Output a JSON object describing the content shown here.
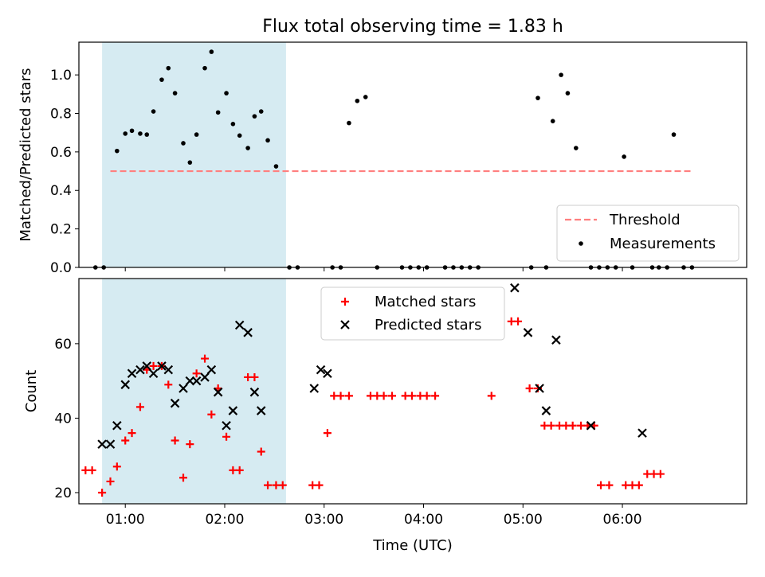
{
  "title": "Flux total observing time = 1.83 h",
  "xlabel": "Time (UTC)",
  "chart_data": [
    {
      "type": "scatter",
      "ylabel": "Matched/Predicted stars",
      "xlim": [
        "00:32",
        "07:15"
      ],
      "ylim": [
        0,
        1.17
      ],
      "yticks": [
        0.0,
        0.2,
        0.4,
        0.6,
        0.8,
        1.0
      ],
      "xticks": [
        "01:00",
        "02:00",
        "03:00",
        "04:00",
        "05:00",
        "06:00"
      ],
      "shaded_interval": [
        "00:46",
        "02:37"
      ],
      "threshold": {
        "name": "Threshold",
        "value": 0.5,
        "x_range": [
          "00:51",
          "06:42"
        ],
        "color": "#ff7f7f"
      },
      "legend": {
        "position": "lower right"
      },
      "series": [
        {
          "name": "Measurements",
          "color": "#000000",
          "points": [
            [
              "00:42",
              0.0
            ],
            [
              "00:47",
              0.0
            ],
            [
              "00:55",
              0.605
            ],
            [
              "01:00",
              0.695
            ],
            [
              "01:04",
              0.71
            ],
            [
              "01:09",
              0.695
            ],
            [
              "01:13",
              0.69
            ],
            [
              "01:17",
              0.81
            ],
            [
              "01:22",
              0.975
            ],
            [
              "01:26",
              1.035
            ],
            [
              "01:30",
              0.905
            ],
            [
              "01:35",
              0.645
            ],
            [
              "01:39",
              0.545
            ],
            [
              "01:43",
              0.69
            ],
            [
              "01:48",
              1.035
            ],
            [
              "01:52",
              1.12
            ],
            [
              "01:56",
              0.805
            ],
            [
              "02:01",
              0.905
            ],
            [
              "02:05",
              0.745
            ],
            [
              "02:09",
              0.685
            ],
            [
              "02:14",
              0.62
            ],
            [
              "02:18",
              0.785
            ],
            [
              "02:22",
              0.81
            ],
            [
              "02:26",
              0.66
            ],
            [
              "02:31",
              0.525
            ],
            [
              "02:39",
              0.0
            ],
            [
              "02:44",
              0.0
            ],
            [
              "03:05",
              0.0
            ],
            [
              "03:10",
              0.0
            ],
            [
              "03:15",
              0.75
            ],
            [
              "03:20",
              0.865
            ],
            [
              "03:25",
              0.885
            ],
            [
              "03:32",
              0.0
            ],
            [
              "03:47",
              0.0
            ],
            [
              "03:52",
              0.0
            ],
            [
              "03:57",
              0.0
            ],
            [
              "04:02",
              0.0
            ],
            [
              "04:13",
              0.0
            ],
            [
              "04:18",
              0.0
            ],
            [
              "04:23",
              0.0
            ],
            [
              "04:28",
              0.0
            ],
            [
              "04:33",
              0.0
            ],
            [
              "05:05",
              0.0
            ],
            [
              "05:09",
              0.88
            ],
            [
              "05:14",
              0.0
            ],
            [
              "05:18",
              0.76
            ],
            [
              "05:23",
              1.0
            ],
            [
              "05:27",
              0.905
            ],
            [
              "05:32",
              0.62
            ],
            [
              "05:41",
              0.0
            ],
            [
              "05:46",
              0.0
            ],
            [
              "05:51",
              0.0
            ],
            [
              "05:56",
              0.0
            ],
            [
              "06:01",
              0.575
            ],
            [
              "06:06",
              0.0
            ],
            [
              "06:18",
              0.0
            ],
            [
              "06:22",
              0.0
            ],
            [
              "06:27",
              0.0
            ],
            [
              "06:31",
              0.69
            ],
            [
              "06:37",
              0.0
            ],
            [
              "06:42",
              0.0
            ]
          ]
        }
      ]
    },
    {
      "type": "scatter",
      "ylabel": "Count",
      "xlim": [
        "00:32",
        "07:15"
      ],
      "ylim": [
        17,
        77.5
      ],
      "yticks": [
        20,
        40,
        60
      ],
      "xticks": [
        "01:00",
        "02:00",
        "03:00",
        "04:00",
        "05:00",
        "06:00"
      ],
      "shaded_interval": [
        "00:46",
        "02:37"
      ],
      "legend": {
        "position": "upper center"
      },
      "series": [
        {
          "name": "Matched stars",
          "marker": "+",
          "color": "#ff0000",
          "points": [
            [
              "00:36",
              26
            ],
            [
              "00:40",
              26
            ],
            [
              "00:46",
              20
            ],
            [
              "00:51",
              23
            ],
            [
              "00:55",
              27
            ],
            [
              "01:00",
              34
            ],
            [
              "01:04",
              36
            ],
            [
              "01:09",
              43
            ],
            [
              "01:13",
              53
            ],
            [
              "01:17",
              54
            ],
            [
              "01:22",
              54
            ],
            [
              "01:26",
              49
            ],
            [
              "01:30",
              34
            ],
            [
              "01:35",
              24
            ],
            [
              "01:39",
              33
            ],
            [
              "01:43",
              52
            ],
            [
              "01:48",
              56
            ],
            [
              "01:52",
              41
            ],
            [
              "01:56",
              48
            ],
            [
              "02:01",
              35
            ],
            [
              "02:05",
              26
            ],
            [
              "02:09",
              26
            ],
            [
              "02:14",
              51
            ],
            [
              "02:18",
              51
            ],
            [
              "02:22",
              31
            ],
            [
              "02:26",
              22
            ],
            [
              "02:31",
              22
            ],
            [
              "02:35",
              22
            ],
            [
              "02:53",
              22
            ],
            [
              "02:57",
              22
            ],
            [
              "03:02",
              36
            ],
            [
              "03:06",
              46
            ],
            [
              "03:10",
              46
            ],
            [
              "03:15",
              46
            ],
            [
              "03:28",
              46
            ],
            [
              "03:32",
              46
            ],
            [
              "03:36",
              46
            ],
            [
              "03:41",
              46
            ],
            [
              "03:49",
              46
            ],
            [
              "03:53",
              46
            ],
            [
              "03:58",
              46
            ],
            [
              "04:02",
              46
            ],
            [
              "04:07",
              46
            ],
            [
              "04:41",
              46
            ],
            [
              "04:53",
              66
            ],
            [
              "04:57",
              66
            ],
            [
              "05:04",
              48
            ],
            [
              "05:09",
              48
            ],
            [
              "05:13",
              38
            ],
            [
              "05:17",
              38
            ],
            [
              "05:22",
              38
            ],
            [
              "05:26",
              38
            ],
            [
              "05:30",
              38
            ],
            [
              "05:35",
              38
            ],
            [
              "05:39",
              38
            ],
            [
              "05:43",
              38
            ],
            [
              "05:47",
              22
            ],
            [
              "05:52",
              22
            ],
            [
              "06:02",
              22
            ],
            [
              "06:06",
              22
            ],
            [
              "06:10",
              22
            ],
            [
              "06:15",
              25
            ],
            [
              "06:19",
              25
            ],
            [
              "06:23",
              25
            ]
          ]
        },
        {
          "name": "Predicted stars",
          "marker": "x",
          "color": "#000000",
          "points": [
            [
              "00:46",
              33
            ],
            [
              "00:51",
              33
            ],
            [
              "00:55",
              38
            ],
            [
              "01:00",
              49
            ],
            [
              "01:04",
              52
            ],
            [
              "01:09",
              53
            ],
            [
              "01:13",
              54
            ],
            [
              "01:17",
              52
            ],
            [
              "01:22",
              54
            ],
            [
              "01:26",
              53
            ],
            [
              "01:30",
              44
            ],
            [
              "01:35",
              48
            ],
            [
              "01:39",
              50
            ],
            [
              "01:43",
              50
            ],
            [
              "01:48",
              51
            ],
            [
              "01:52",
              53
            ],
            [
              "01:56",
              47
            ],
            [
              "02:01",
              38
            ],
            [
              "02:05",
              42
            ],
            [
              "02:09",
              65
            ],
            [
              "02:14",
              63
            ],
            [
              "02:18",
              47
            ],
            [
              "02:22",
              42
            ],
            [
              "02:54",
              48
            ],
            [
              "02:58",
              53
            ],
            [
              "03:02",
              52
            ],
            [
              "04:55",
              75
            ],
            [
              "05:03",
              63
            ],
            [
              "05:10",
              48
            ],
            [
              "05:14",
              42
            ],
            [
              "05:20",
              61
            ],
            [
              "05:41",
              38
            ],
            [
              "06:12",
              36
            ]
          ]
        }
      ]
    }
  ]
}
